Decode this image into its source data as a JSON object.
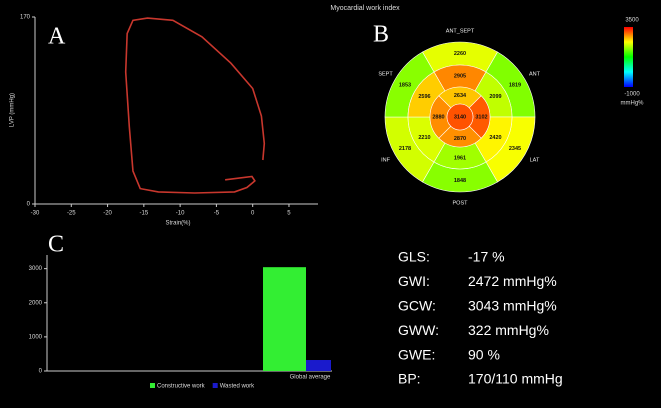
{
  "title": "Myocardial work index",
  "chart_data": [
    {
      "type": "line",
      "panel": "A",
      "x_label": "Strain(%)",
      "y_label": "LVP (mmHg)",
      "xlim": [
        -30,
        9
      ],
      "xticks": [
        -30,
        -25,
        -20,
        -15,
        -10,
        -5,
        0,
        5
      ],
      "ylim": [
        0,
        170
      ],
      "yticks": [
        0,
        170
      ],
      "series": [
        {
          "color": "#c8372d",
          "x": [
            -3.8,
            -0.1,
            0.3,
            -0.8,
            -2.5,
            -8,
            -13,
            -15.5,
            -16.5,
            -17,
            -17.5,
            -17.3,
            -16.5,
            -14.5,
            -11,
            -7,
            -3,
            0,
            1.2,
            1.6,
            1.4
          ],
          "values": [
            22,
            25,
            21,
            15,
            11,
            10,
            11,
            14,
            30,
            70,
            120,
            155,
            167,
            169,
            167,
            152,
            128,
            105,
            80,
            55,
            40
          ]
        }
      ]
    },
    {
      "type": "bullseye",
      "panel": "B",
      "segment_labels": [
        "ANT_SEPT",
        "ANT",
        "LAT",
        "POST",
        "INF",
        "SEPT"
      ],
      "outer": [
        2260,
        1819,
        2345,
        1848,
        2178,
        1853
      ],
      "mid": [
        2905,
        2099,
        2420,
        1961,
        2210,
        2596
      ],
      "inner": [
        2634,
        3102,
        2870,
        2880
      ],
      "apex": 3140,
      "clim": [
        -1000,
        3500
      ],
      "colorbar_unit": "mmHg%",
      "colorscale": [
        "#0000ff",
        "#00ffff",
        "#00ff00",
        "#ffff00",
        "#ff0000"
      ]
    },
    {
      "type": "bar",
      "panel": "C",
      "categories": [
        "Global average"
      ],
      "ylim": [
        0,
        3400
      ],
      "yticks": [
        0,
        1000,
        2000,
        3000
      ],
      "series": [
        {
          "name": "Constructive work",
          "color": "#33ee33",
          "values": [
            3043
          ]
        },
        {
          "name": "Wasted work",
          "color": "#1a1acc",
          "values": [
            322
          ]
        }
      ]
    }
  ],
  "metrics": {
    "rows": [
      [
        "GLS:",
        "-17 %"
      ],
      [
        "GWI:",
        "2472 mmHg%"
      ],
      [
        "GCW:",
        "3043 mmHg%"
      ],
      [
        "GWW:",
        "322 mmHg%"
      ],
      [
        "GWE:",
        "90 %"
      ],
      [
        "BP:",
        "170/110 mmHg"
      ]
    ]
  }
}
